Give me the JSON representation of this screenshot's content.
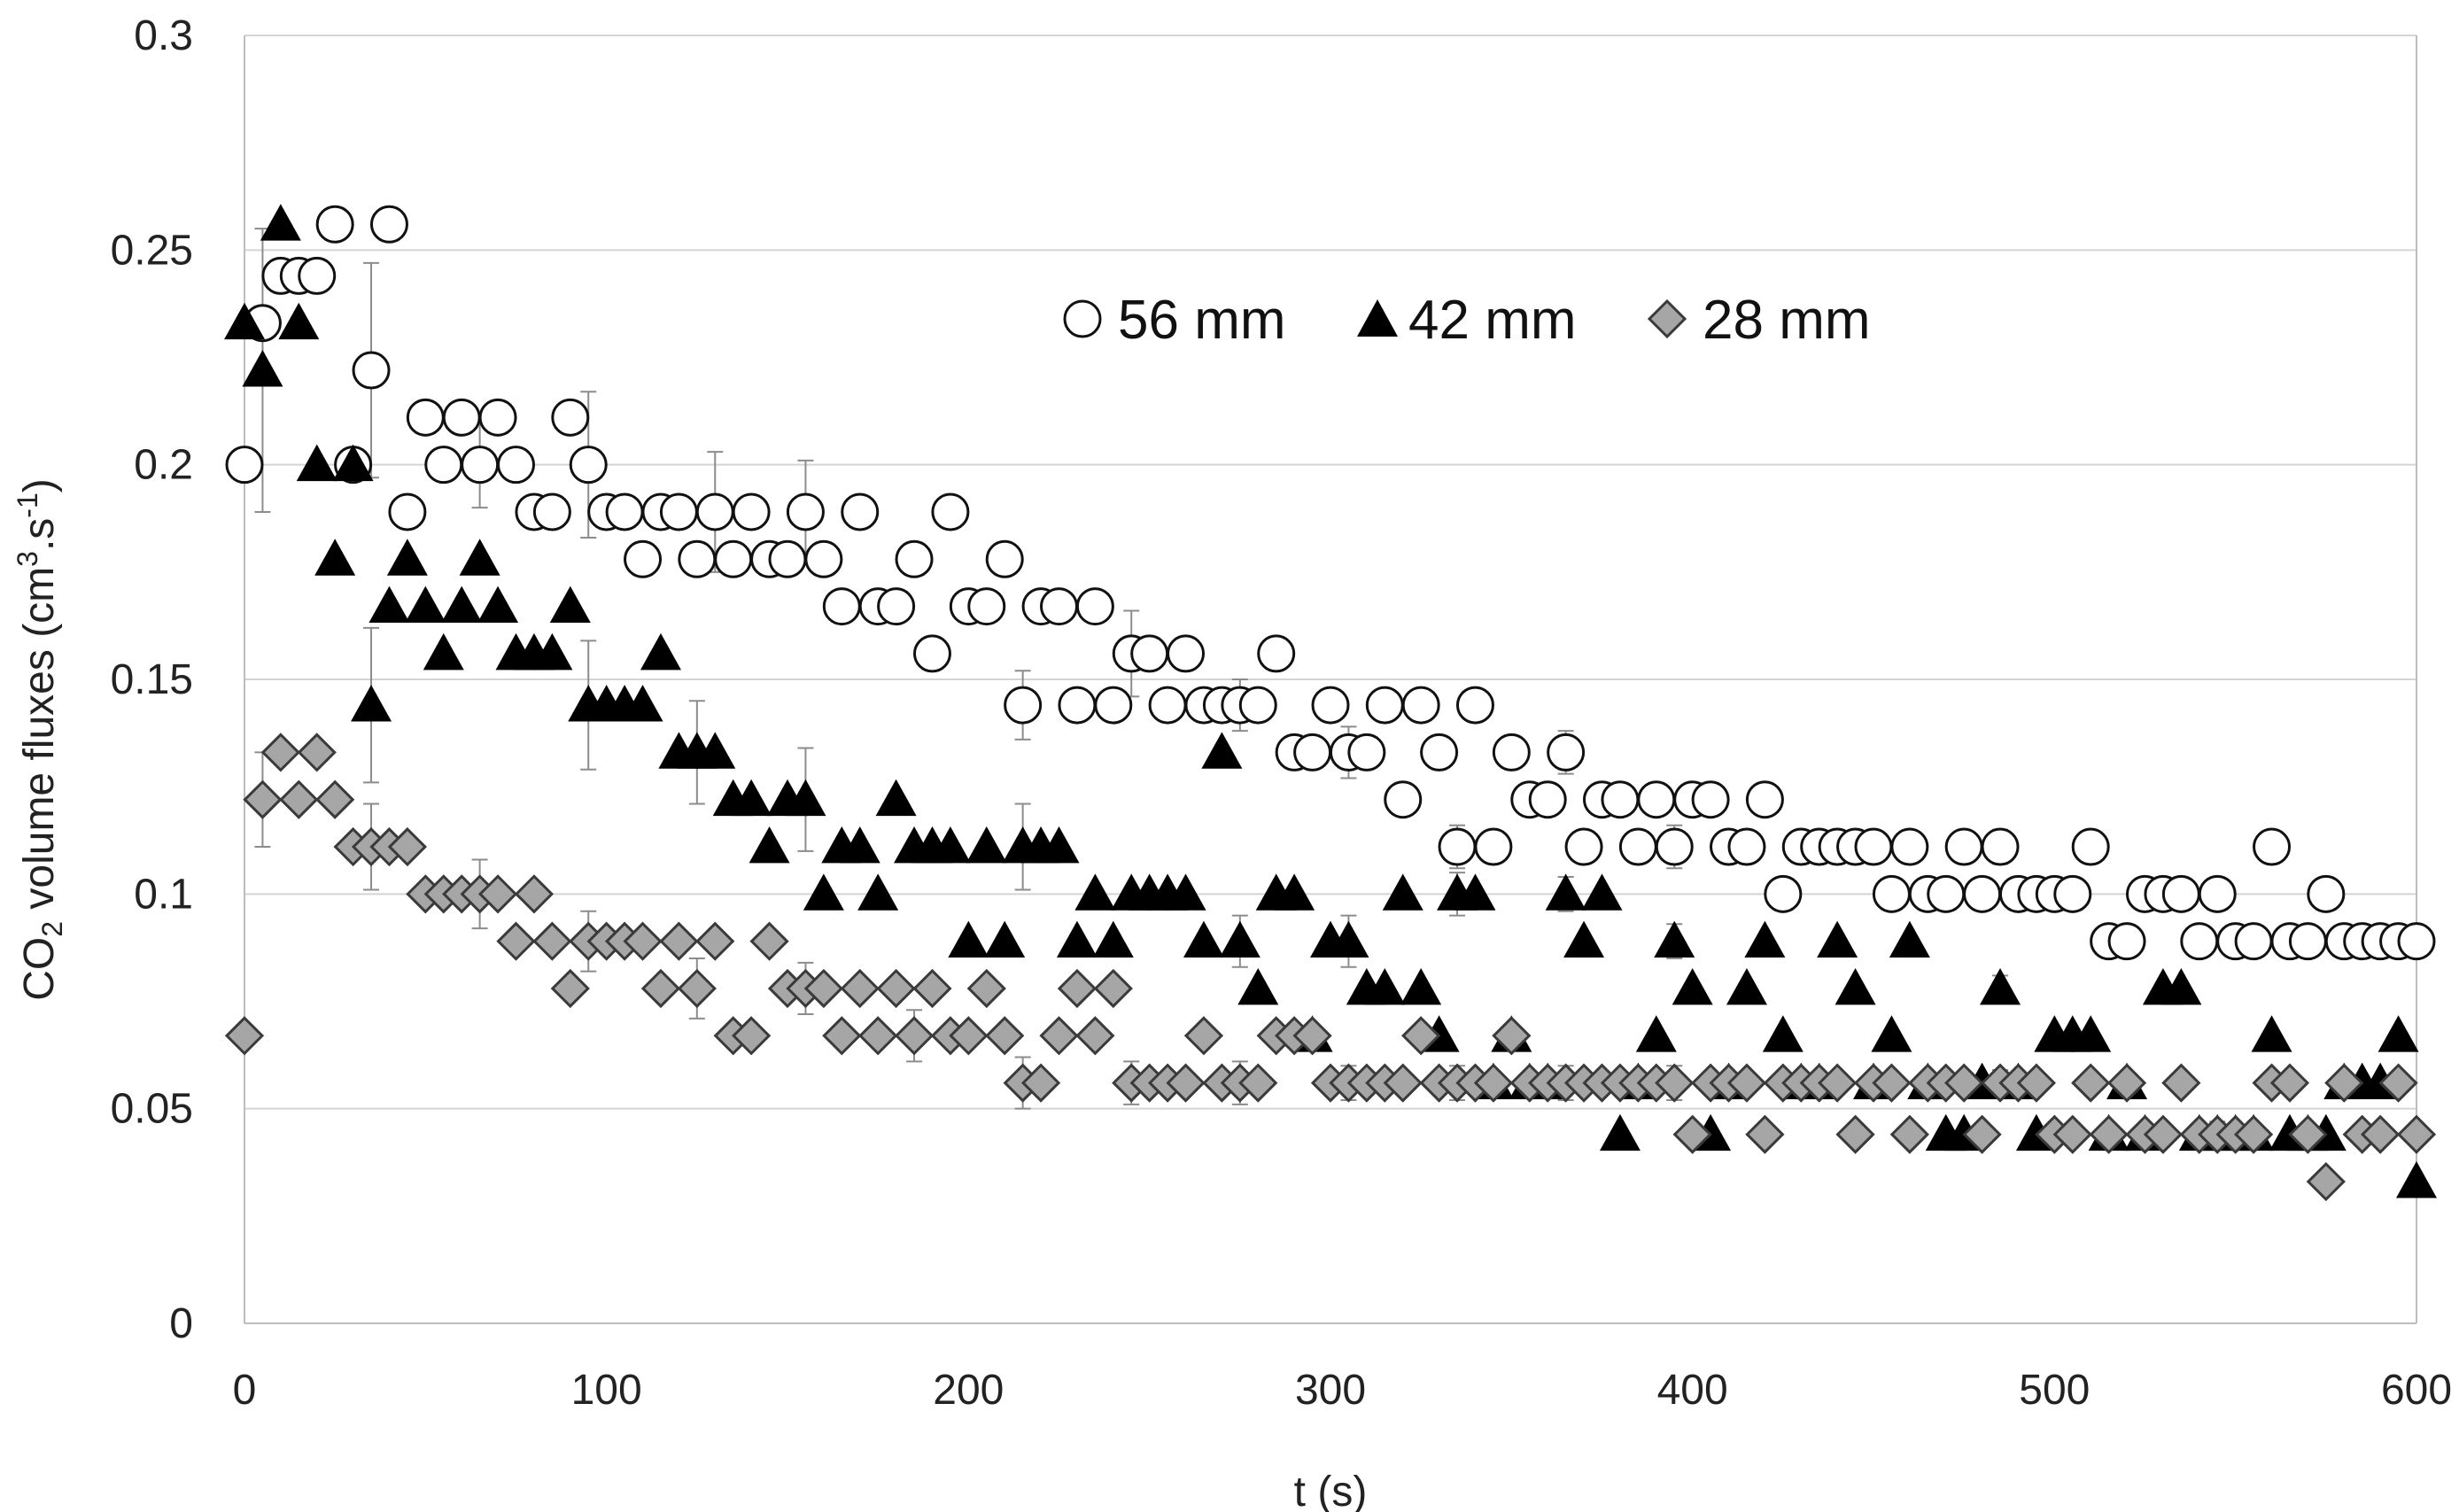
{
  "chart_data": {
    "type": "scatter",
    "title": "",
    "xlabel": "t (s)",
    "ylabel": {
      "pre": "CO",
      "sub": "2",
      "mid": " volume fluxes   (cm",
      "sup1": "3",
      "dot": ".s",
      "sup2": "-1",
      "post": ")"
    },
    "xlim": [
      0,
      600
    ],
    "ylim": [
      0,
      0.3
    ],
    "x_ticks": [
      0,
      100,
      200,
      300,
      400,
      500,
      600
    ],
    "x_tick_labels": [
      "0",
      "100",
      "200",
      "300",
      "400",
      "500",
      "600"
    ],
    "y_ticks": [
      0,
      0.05,
      0.1,
      0.15,
      0.2,
      0.25,
      0.3
    ],
    "y_tick_labels": [
      "0",
      "0.05",
      "0.1",
      "0.15",
      "0.2",
      "0.25",
      "0.3"
    ],
    "legend_position": "top-right",
    "grid": "horizontal",
    "series": [
      {
        "name": "56 mm",
        "marker": "circle",
        "fill": "#ffffff",
        "stroke": "#111111",
        "x": [
          0,
          5,
          10,
          15,
          20,
          25,
          30,
          35,
          40,
          45,
          50,
          55,
          60,
          65,
          70,
          75,
          80,
          85,
          90,
          95,
          100,
          105,
          110,
          115,
          120,
          125,
          130,
          135,
          140,
          145,
          150,
          155,
          160,
          165,
          170,
          175,
          180,
          185,
          190,
          195,
          200,
          205,
          210,
          215,
          220,
          225,
          230,
          235,
          240,
          245,
          250,
          255,
          260,
          265,
          270,
          275,
          280,
          285,
          290,
          295,
          300,
          305,
          310,
          315,
          320,
          325,
          330,
          335,
          340,
          345,
          350,
          355,
          360,
          365,
          370,
          375,
          380,
          385,
          390,
          395,
          400,
          405,
          410,
          415,
          420,
          425,
          430,
          435,
          440,
          445,
          450,
          455,
          460,
          465,
          470,
          475,
          480,
          485,
          490,
          495,
          500,
          505,
          510,
          515,
          520,
          525,
          530,
          535,
          540,
          545,
          550,
          555,
          560,
          565,
          570,
          575,
          580,
          585,
          590,
          595,
          600
        ],
        "values": [
          0.2,
          0.233,
          0.244,
          0.244,
          0.244,
          0.256,
          0.2,
          0.222,
          0.256,
          0.189,
          0.211,
          0.2,
          0.211,
          0.2,
          0.211,
          0.2,
          0.189,
          0.189,
          0.211,
          0.2,
          0.189,
          0.189,
          0.178,
          0.189,
          0.189,
          0.178,
          0.189,
          0.178,
          0.189,
          0.178,
          0.178,
          0.189,
          0.178,
          0.167,
          0.189,
          0.167,
          0.167,
          0.178,
          0.156,
          0.189,
          0.167,
          0.167,
          0.178,
          0.144,
          0.167,
          0.167,
          0.144,
          0.167,
          0.144,
          0.156,
          0.156,
          0.144,
          0.156,
          0.144,
          0.144,
          0.144,
          0.144,
          0.156,
          0.133,
          0.133,
          0.144,
          0.133,
          0.133,
          0.144,
          0.122,
          0.144,
          0.133,
          0.111,
          0.144,
          0.111,
          0.133,
          0.122,
          0.122,
          0.133,
          0.111,
          0.122,
          0.122,
          0.111,
          0.122,
          0.111,
          0.122,
          0.122,
          0.111,
          0.111,
          0.122,
          0.1,
          0.111,
          0.111,
          0.111,
          0.111,
          0.111,
          0.1,
          0.111,
          0.1,
          0.1,
          0.111,
          0.1,
          0.111,
          0.1,
          0.1,
          0.1,
          0.1,
          0.111,
          0.089,
          0.089,
          0.1,
          0.1,
          0.1,
          0.089,
          0.1,
          0.089,
          0.089,
          0.111,
          0.089,
          0.089,
          0.1,
          0.089,
          0.089,
          0.089,
          0.089,
          0.089
        ],
        "error": [
          0,
          0,
          0,
          0,
          0,
          0,
          0,
          0.025,
          0,
          0,
          0,
          0,
          0,
          0.01,
          0,
          0,
          0,
          0,
          0,
          0.017,
          0,
          0,
          0,
          0,
          0,
          0,
          0.014,
          0,
          0,
          0,
          0,
          0.012,
          0,
          0,
          0,
          0,
          0,
          0,
          0,
          0,
          0,
          0,
          0,
          0.008,
          0,
          0,
          0,
          0,
          0,
          0.01,
          0,
          0,
          0,
          0,
          0,
          0.006,
          0,
          0,
          0,
          0,
          0,
          0.006,
          0,
          0,
          0,
          0,
          0,
          0.005,
          0,
          0,
          0,
          0,
          0,
          0.005,
          0,
          0,
          0,
          0,
          0,
          0.005,
          0,
          0,
          0,
          0,
          0,
          0,
          0,
          0,
          0,
          0,
          0,
          0,
          0,
          0,
          0,
          0,
          0,
          0.004,
          0,
          0,
          0,
          0,
          0,
          0,
          0,
          0,
          0,
          0,
          0,
          0,
          0,
          0,
          0,
          0,
          0,
          0,
          0,
          0,
          0,
          0,
          0
        ]
      },
      {
        "name": "42 mm",
        "marker": "triangle",
        "fill": "#000000",
        "stroke": "#000000",
        "x": [
          0,
          5,
          10,
          15,
          20,
          25,
          30,
          35,
          40,
          45,
          50,
          55,
          60,
          65,
          70,
          75,
          80,
          85,
          90,
          95,
          100,
          105,
          110,
          115,
          120,
          125,
          130,
          135,
          140,
          145,
          150,
          155,
          160,
          165,
          170,
          175,
          180,
          185,
          190,
          195,
          200,
          205,
          210,
          215,
          220,
          225,
          230,
          235,
          240,
          245,
          250,
          255,
          260,
          265,
          270,
          275,
          280,
          285,
          290,
          295,
          300,
          305,
          310,
          315,
          320,
          325,
          330,
          335,
          340,
          345,
          350,
          355,
          360,
          365,
          370,
          375,
          380,
          385,
          390,
          395,
          400,
          405,
          410,
          415,
          420,
          425,
          430,
          435,
          440,
          445,
          450,
          455,
          460,
          465,
          470,
          475,
          480,
          485,
          490,
          495,
          500,
          505,
          510,
          515,
          520,
          525,
          530,
          535,
          540,
          545,
          550,
          555,
          560,
          565,
          570,
          575,
          580,
          585,
          590,
          595,
          600
        ],
        "values": [
          0.233,
          0.222,
          0.256,
          0.233,
          0.2,
          0.178,
          0.2,
          0.144,
          0.167,
          0.178,
          0.167,
          0.156,
          0.167,
          0.178,
          0.167,
          0.156,
          0.156,
          0.156,
          0.167,
          0.144,
          0.144,
          0.144,
          0.144,
          0.156,
          0.133,
          0.133,
          0.133,
          0.122,
          0.122,
          0.111,
          0.122,
          0.122,
          0.1,
          0.111,
          0.111,
          0.1,
          0.122,
          0.111,
          0.111,
          0.111,
          0.089,
          0.111,
          0.089,
          0.111,
          0.111,
          0.111,
          0.089,
          0.1,
          0.089,
          0.1,
          0.1,
          0.1,
          0.1,
          0.089,
          0.133,
          0.089,
          0.078,
          0.1,
          0.1,
          0.067,
          0.089,
          0.089,
          0.078,
          0.078,
          0.1,
          0.078,
          0.067,
          0.1,
          0.1,
          0.056,
          0.067,
          0.056,
          0.056,
          0.1,
          0.089,
          0.1,
          0.044,
          0.056,
          0.067,
          0.089,
          0.078,
          0.044,
          0.056,
          0.078,
          0.089,
          0.067,
          0.056,
          0.056,
          0.089,
          0.078,
          0.056,
          0.067,
          0.089,
          0.056,
          0.044,
          0.044,
          0.056,
          0.078,
          0.056,
          0.044,
          0.067,
          0.067,
          0.067,
          0.044,
          0.056,
          0.044,
          0.078,
          0.078,
          0.044,
          0.044,
          0.044,
          0.044,
          0.067,
          0.044,
          0.044,
          0.044,
          0.056,
          0.056,
          0.056,
          0.067,
          0.033
        ],
        "error": [
          0,
          0.033,
          0,
          0,
          0,
          0,
          0,
          0.018,
          0,
          0,
          0,
          0,
          0,
          0,
          0,
          0,
          0,
          0,
          0,
          0.015,
          0,
          0,
          0,
          0,
          0,
          0.012,
          0,
          0,
          0,
          0,
          0,
          0.012,
          0,
          0,
          0,
          0,
          0,
          0,
          0,
          0,
          0,
          0,
          0,
          0.01,
          0,
          0,
          0,
          0,
          0,
          0,
          0,
          0,
          0,
          0,
          0,
          0.006,
          0,
          0,
          0,
          0,
          0,
          0.006,
          0,
          0,
          0,
          0,
          0,
          0.005,
          0,
          0,
          0,
          0,
          0,
          0.004,
          0,
          0,
          0,
          0,
          0,
          0.004,
          0,
          0,
          0,
          0,
          0,
          0,
          0,
          0,
          0,
          0,
          0,
          0,
          0,
          0,
          0,
          0,
          0,
          0.003,
          0,
          0,
          0,
          0,
          0,
          0,
          0,
          0,
          0,
          0,
          0,
          0,
          0,
          0,
          0,
          0,
          0,
          0,
          0,
          0,
          0,
          0,
          0
        ]
      },
      {
        "name": "28 mm",
        "marker": "diamond",
        "fill": "#a6a6a6",
        "stroke": "#3a3a3a",
        "x": [
          0,
          5,
          10,
          15,
          20,
          25,
          30,
          35,
          40,
          45,
          50,
          55,
          60,
          65,
          70,
          75,
          80,
          85,
          90,
          95,
          100,
          105,
          110,
          115,
          120,
          125,
          130,
          135,
          140,
          145,
          150,
          155,
          160,
          165,
          170,
          175,
          180,
          185,
          190,
          195,
          200,
          205,
          210,
          215,
          220,
          225,
          230,
          235,
          240,
          245,
          250,
          255,
          260,
          265,
          270,
          275,
          280,
          285,
          290,
          295,
          300,
          305,
          310,
          315,
          320,
          325,
          330,
          335,
          340,
          345,
          350,
          355,
          360,
          365,
          370,
          375,
          380,
          385,
          390,
          395,
          400,
          405,
          410,
          415,
          420,
          425,
          430,
          435,
          440,
          445,
          450,
          455,
          460,
          465,
          470,
          475,
          480,
          485,
          490,
          495,
          500,
          505,
          510,
          515,
          520,
          525,
          530,
          535,
          540,
          545,
          550,
          555,
          560,
          565,
          570,
          575,
          580,
          585,
          590,
          595,
          600
        ],
        "values": [
          0.067,
          0.122,
          0.133,
          0.122,
          0.133,
          0.122,
          0.111,
          0.111,
          0.111,
          0.111,
          0.1,
          0.1,
          0.1,
          0.1,
          0.1,
          0.089,
          0.1,
          0.089,
          0.078,
          0.089,
          0.089,
          0.089,
          0.089,
          0.078,
          0.089,
          0.078,
          0.089,
          0.067,
          0.067,
          0.089,
          0.078,
          0.078,
          0.078,
          0.067,
          0.078,
          0.067,
          0.078,
          0.067,
          0.078,
          0.067,
          0.067,
          0.078,
          0.067,
          0.056,
          0.056,
          0.067,
          0.078,
          0.067,
          0.078,
          0.056,
          0.056,
          0.056,
          0.056,
          0.067,
          0.056,
          0.056,
          0.056,
          0.067,
          0.067,
          0.067,
          0.056,
          0.056,
          0.056,
          0.056,
          0.056,
          0.067,
          0.056,
          0.056,
          0.056,
          0.056,
          0.067,
          0.056,
          0.056,
          0.056,
          0.056,
          0.056,
          0.056,
          0.056,
          0.056,
          0.056,
          0.044,
          0.056,
          0.056,
          0.056,
          0.044,
          0.056,
          0.056,
          0.056,
          0.056,
          0.044,
          0.056,
          0.056,
          0.044,
          0.056,
          0.056,
          0.056,
          0.044,
          0.056,
          0.056,
          0.056,
          0.044,
          0.044,
          0.056,
          0.044,
          0.056,
          0.044,
          0.044,
          0.056,
          0.044,
          0.044,
          0.044,
          0.044,
          0.056,
          0.056,
          0.044,
          0.033,
          0.056,
          0.044,
          0.044,
          0.056,
          0.044
        ],
        "error": [
          0,
          0.011,
          0,
          0,
          0,
          0,
          0,
          0.01,
          0,
          0,
          0,
          0,
          0,
          0.008,
          0,
          0,
          0,
          0,
          0,
          0.007,
          0,
          0,
          0,
          0,
          0,
          0.007,
          0,
          0,
          0,
          0,
          0,
          0.006,
          0,
          0,
          0,
          0,
          0,
          0.006,
          0,
          0,
          0,
          0,
          0,
          0.006,
          0,
          0,
          0,
          0,
          0,
          0.005,
          0,
          0,
          0,
          0,
          0,
          0.005,
          0,
          0,
          0,
          0,
          0,
          0.004,
          0,
          0,
          0,
          0,
          0,
          0.004,
          0,
          0,
          0,
          0,
          0,
          0.004,
          0,
          0,
          0,
          0,
          0,
          0.004,
          0,
          0,
          0,
          0,
          0,
          0,
          0,
          0,
          0,
          0,
          0,
          0,
          0,
          0,
          0,
          0,
          0,
          0.003,
          0,
          0,
          0,
          0,
          0,
          0,
          0,
          0,
          0,
          0,
          0,
          0.003,
          0,
          0,
          0,
          0,
          0,
          0,
          0,
          0,
          0,
          0,
          0
        ]
      }
    ]
  }
}
